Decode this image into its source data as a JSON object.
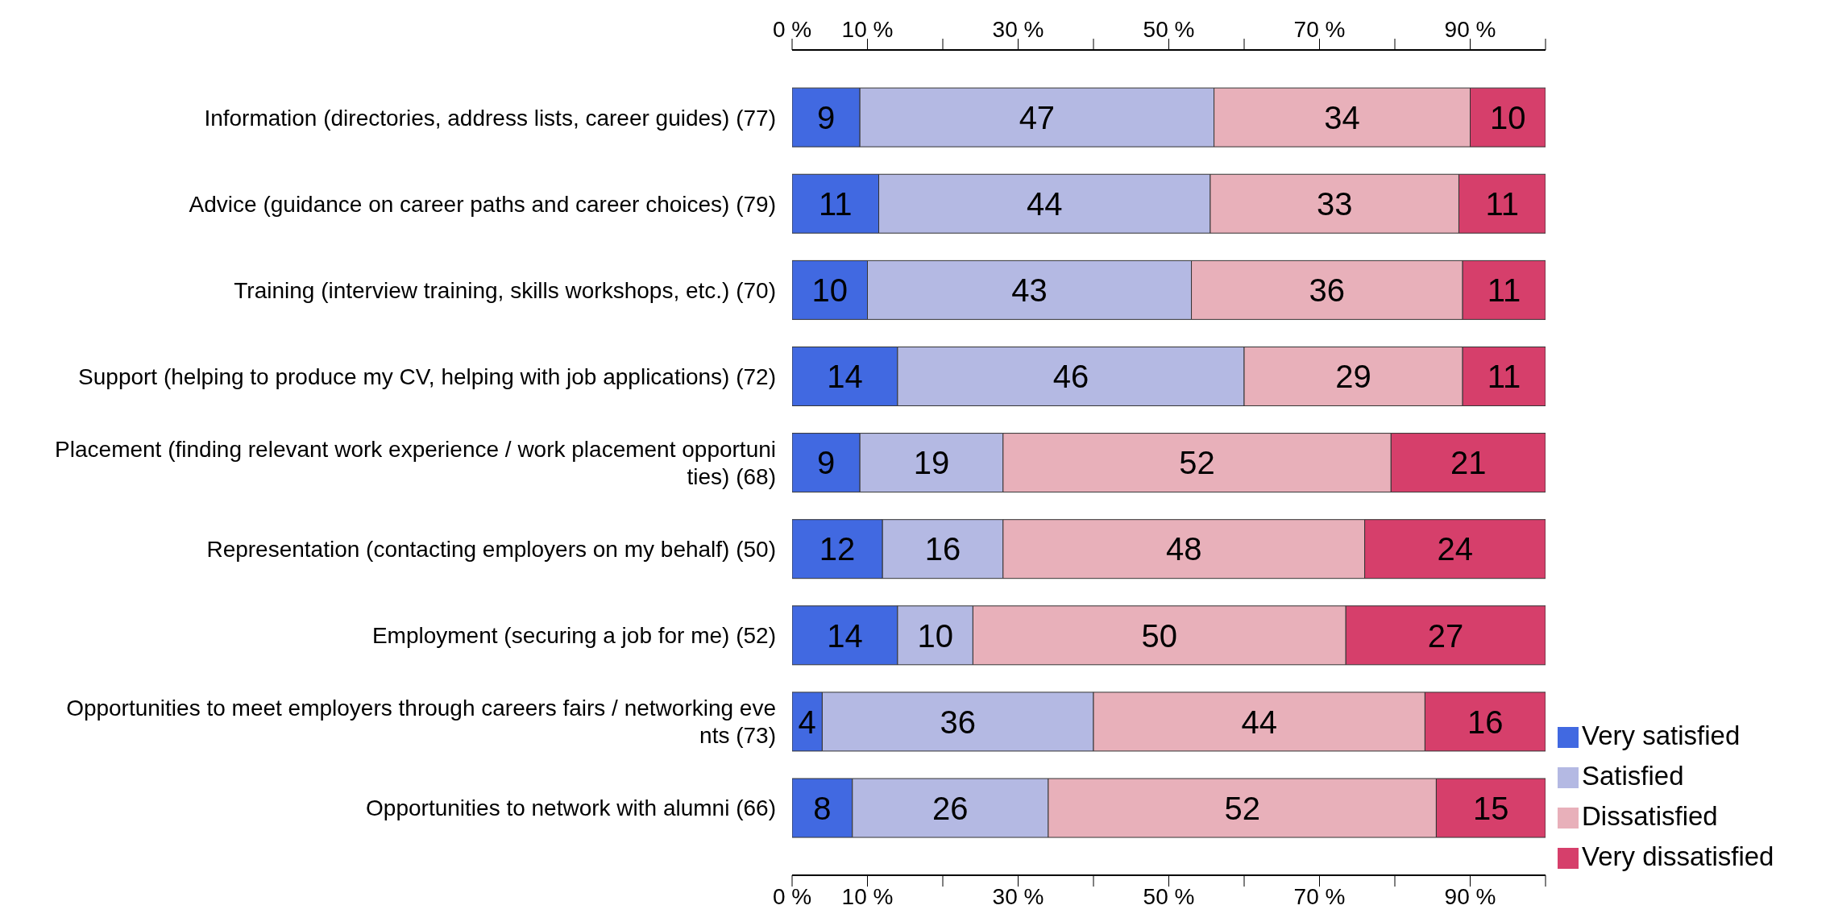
{
  "chart_data": {
    "type": "bar",
    "orientation": "horizontal",
    "stacked": true,
    "legend": "bottom right",
    "categories": [
      "Information (directories, address lists, career guides) (77)",
      "Advice (guidance on career paths and career choices) (79)",
      "Training (interview training, skills workshops, etc.) (70)",
      "Support (helping to produce my CV, helping with job applications) (72)",
      "Placement (finding relevant work experience / work placement opportuni\nties) (68)",
      "Representation (contacting employers on my behalf) (50)",
      "Employment (securing a job for me) (52)",
      "Opportunities to meet employers through careers fairs / networking eve\nnts (73)",
      "Opportunities to network with alumni (66)"
    ],
    "series": [
      {
        "name": "Very satisfied",
        "color": "#4169e1",
        "values": [
          9,
          11.5,
          10,
          14,
          9,
          12,
          14,
          4,
          8
        ],
        "value_labels": [
          "9",
          "11",
          "10",
          "14",
          "9",
          "12",
          "14",
          "4",
          "8"
        ]
      },
      {
        "name": "Satisfied",
        "color": "#b4b9e3",
        "values": [
          47,
          44,
          43,
          46,
          19,
          16,
          10,
          36,
          26
        ],
        "value_labels": [
          "47",
          "44",
          "43",
          "46",
          "19",
          "16",
          "10",
          "36",
          "26"
        ]
      },
      {
        "name": "Dissatisfied",
        "color": "#e8b0ba",
        "values": [
          34,
          33,
          36,
          29,
          51.5,
          48,
          49.5,
          44,
          51.5
        ],
        "value_labels": [
          "34",
          "33",
          "36",
          "29",
          "52",
          "48",
          "50",
          "44",
          "52"
        ]
      },
      {
        "name": "Very dissatisfied",
        "color": "#d63f6b",
        "values": [
          10,
          11.5,
          11,
          11,
          20.5,
          24,
          26.5,
          16,
          14.5
        ],
        "value_labels": [
          "10",
          "11",
          "11",
          "11",
          "21",
          "24",
          "27",
          "16",
          "15"
        ]
      }
    ],
    "xlim": [
      0,
      100
    ],
    "xticks": [
      {
        "value": 0,
        "label": "0 %"
      },
      {
        "value": 10,
        "label": "10 %"
      },
      {
        "value": 20,
        "label": null
      },
      {
        "value": 30,
        "label": "30 %"
      },
      {
        "value": 40,
        "label": null
      },
      {
        "value": 50,
        "label": "50 %"
      },
      {
        "value": 60,
        "label": null
      },
      {
        "value": 70,
        "label": "70 %"
      },
      {
        "value": 80,
        "label": null
      },
      {
        "value": 90,
        "label": "90 %"
      },
      {
        "value": 100,
        "label": null
      }
    ],
    "x2lim": [
      0,
      100
    ],
    "x2ticks": [
      {
        "value": 0,
        "label": "0 %"
      },
      {
        "value": 10,
        "label": "10 %"
      },
      {
        "value": 20,
        "label": null
      },
      {
        "value": 30,
        "label": "30 %"
      },
      {
        "value": 40,
        "label": null
      },
      {
        "value": 50,
        "label": "50 %"
      },
      {
        "value": 60,
        "label": null
      },
      {
        "value": 70,
        "label": "70 %"
      },
      {
        "value": 80,
        "label": null
      },
      {
        "value": 90,
        "label": "90 %"
      },
      {
        "value": 100,
        "label": null
      }
    ]
  }
}
